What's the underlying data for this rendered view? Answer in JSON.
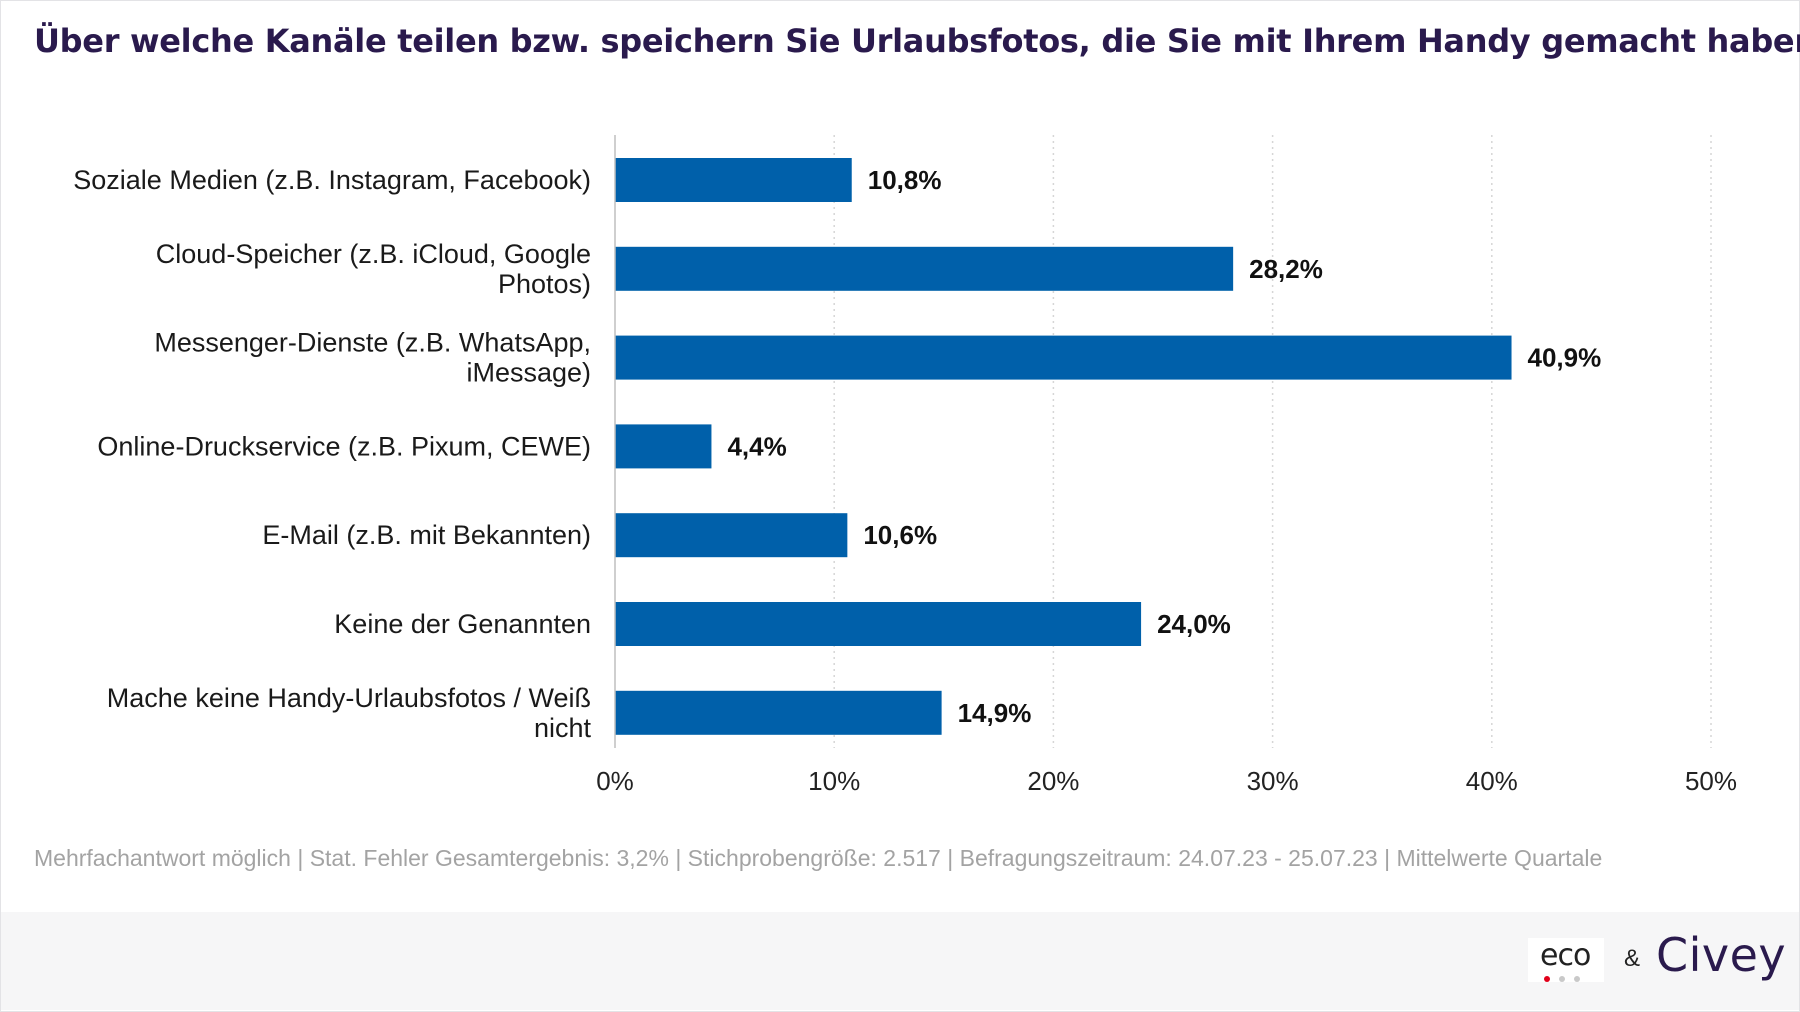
{
  "title": "Über welche Kanäle teilen bzw. speichern Sie Urlaubsfotos, die Sie mit Ihrem Handy gemacht haben?",
  "footnote": "Mehrfachantwort möglich | Stat. Fehler Gesamtergebnis: 3,2% | Stichprobengröße: 2.517 | Befragungszeitraum: 24.07.23 - 25.07.23 | Mittelwerte Quartale",
  "branding": {
    "eco_label": "eco",
    "ampersand": "&",
    "civey_label": "Civey"
  },
  "colors": {
    "bar": "#0060aa",
    "title": "#2a1a4d",
    "grid": "#d6d6d6"
  },
  "chart_data": {
    "type": "bar",
    "orientation": "horizontal",
    "categories": [
      [
        "Soziale Medien (z.B. Instagram, Facebook)"
      ],
      [
        "Cloud-Speicher (z.B. iCloud, Google",
        "Photos)"
      ],
      [
        "Messenger-Dienste (z.B. WhatsApp,",
        "iMessage)"
      ],
      [
        "Online-Druckservice (z.B. Pixum, CEWE)"
      ],
      [
        "E-Mail (z.B. mit Bekannten)"
      ],
      [
        "Keine der Genannten"
      ],
      [
        "Mache keine Handy-Urlaubsfotos / Weiß",
        "nicht"
      ]
    ],
    "values": [
      10.8,
      28.2,
      40.9,
      4.4,
      10.6,
      24.0,
      14.9
    ],
    "value_labels": [
      "10,8%",
      "28,2%",
      "40,9%",
      "4,4%",
      "10,6%",
      "24,0%",
      "14,9%"
    ],
    "xlim": [
      0,
      50
    ],
    "ticks": [
      0,
      10,
      20,
      30,
      40,
      50
    ],
    "tick_labels": [
      "0%",
      "10%",
      "20%",
      "30%",
      "40%",
      "50%"
    ],
    "grid": true
  }
}
